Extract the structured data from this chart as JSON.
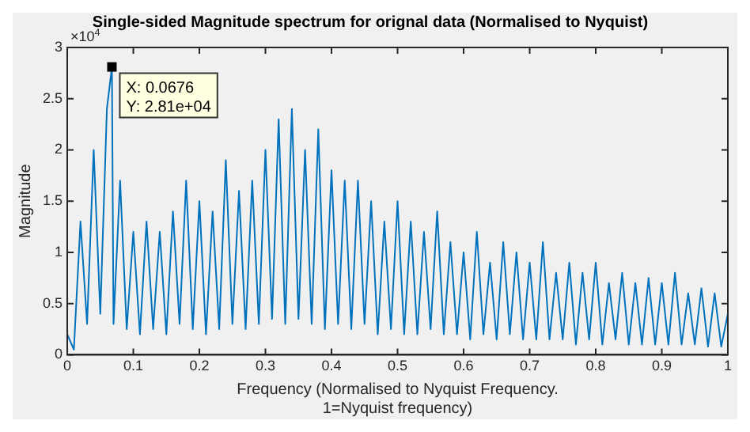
{
  "chart_data": {
    "type": "line",
    "title": "Single-sided Magnitude spectrum for orignal data (Normalised to Nyquist)",
    "xlabel": "Frequency (Normalised to Nyquist Frequency.\n1=Nyquist frequency)",
    "ylabel": "Magnitude",
    "annotations": [
      "×10$^{4}$",
      {
        "text": "X: 0.0676\nY: 2.81e+04",
        "x": 0.0676,
        "y": 2.81
      }
    ],
    "series": [
      {
        "color": "#0072bd",
        "x": [
          0,
          0.01,
          0.02,
          0.03,
          0.04,
          0.05,
          0.06,
          0.0676,
          0.07,
          0.08,
          0.09,
          0.1,
          0.11,
          0.12,
          0.13,
          0.14,
          0.15,
          0.16,
          0.17,
          0.18,
          0.19,
          0.2,
          0.21,
          0.22,
          0.23,
          0.24,
          0.25,
          0.26,
          0.27,
          0.28,
          0.29,
          0.3,
          0.31,
          0.32,
          0.33,
          0.34,
          0.35,
          0.36,
          0.37,
          0.38,
          0.39,
          0.4,
          0.41,
          0.42,
          0.43,
          0.44,
          0.45,
          0.46,
          0.47,
          0.48,
          0.49,
          0.5,
          0.51,
          0.52,
          0.53,
          0.54,
          0.55,
          0.56,
          0.57,
          0.58,
          0.59,
          0.6,
          0.61,
          0.62,
          0.63,
          0.64,
          0.65,
          0.66,
          0.67,
          0.68,
          0.69,
          0.7,
          0.71,
          0.72,
          0.73,
          0.74,
          0.75,
          0.76,
          0.77,
          0.78,
          0.79,
          0.8,
          0.81,
          0.82,
          0.83,
          0.84,
          0.85,
          0.86,
          0.87,
          0.88,
          0.89,
          0.9,
          0.91,
          0.92,
          0.93,
          0.94,
          0.95,
          0.96,
          0.97,
          0.98,
          0.99,
          1
        ],
        "values": [
          0.2,
          0.05,
          1.3,
          0.3,
          2.0,
          0.4,
          2.4,
          2.81,
          0.3,
          1.7,
          0.25,
          1.2,
          0.2,
          1.3,
          0.25,
          1.2,
          0.2,
          1.4,
          0.3,
          1.7,
          0.25,
          1.5,
          0.2,
          1.4,
          0.25,
          1.9,
          0.3,
          1.6,
          0.25,
          1.7,
          0.3,
          2.0,
          0.35,
          2.3,
          0.3,
          2.4,
          0.35,
          2.0,
          0.3,
          2.2,
          0.25,
          1.8,
          0.3,
          1.7,
          0.25,
          1.7,
          0.3,
          1.5,
          0.2,
          1.3,
          0.25,
          1.5,
          0.2,
          1.3,
          0.2,
          1.2,
          0.25,
          1.4,
          0.2,
          1.1,
          0.2,
          1.0,
          0.15,
          1.2,
          0.2,
          0.9,
          0.15,
          1.1,
          0.2,
          1.0,
          0.15,
          0.9,
          0.15,
          1.1,
          0.15,
          0.8,
          0.15,
          0.9,
          0.1,
          0.8,
          0.15,
          0.9,
          0.1,
          0.7,
          0.15,
          0.8,
          0.1,
          0.7,
          0.1,
          0.75,
          0.1,
          0.7,
          0.1,
          0.8,
          0.1,
          0.6,
          0.1,
          0.65,
          0.08,
          0.6,
          0.08,
          0.4
        ]
      }
    ],
    "xlim": [
      0,
      1
    ],
    "xticks": [
      0,
      0.1,
      0.2,
      0.3,
      0.4,
      0.5,
      0.6,
      0.7,
      0.8,
      0.9,
      1
    ],
    "ylim": [
      0,
      3
    ],
    "yticks": [
      0,
      0.5,
      1,
      1.5,
      2,
      2.5,
      3
    ],
    "grid": false,
    "legend": false,
    "marker": "none",
    "line_style": "solid"
  }
}
